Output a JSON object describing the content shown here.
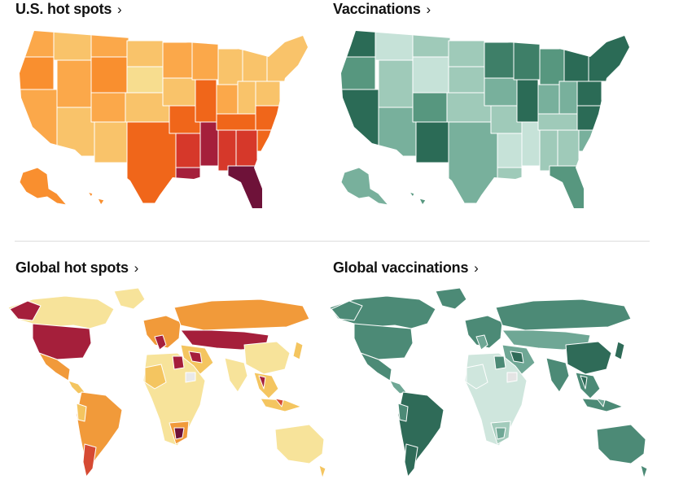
{
  "panels": {
    "us_hot_spots": {
      "title": "U.S. hot spots",
      "chevron": "›",
      "palette": [
        "#f7dd8f",
        "#f9c36a",
        "#fba84a",
        "#f98f2f",
        "#f0661a",
        "#d6382a",
        "#a51f3b",
        "#6e1239"
      ]
    },
    "vaccinations": {
      "title": "Vaccinations",
      "chevron": "›",
      "palette": [
        "#c6e2d8",
        "#9fcab9",
        "#78b09c",
        "#57977f",
        "#3e7f68",
        "#2b6b56"
      ]
    },
    "global_hot_spots": {
      "title": "Global hot spots",
      "chevron": "›",
      "palette": [
        "#f7e39a",
        "#f4c560",
        "#f19a3a",
        "#d64a33",
        "#a51f3b",
        "#e9e9e9"
      ]
    },
    "global_vaccinations": {
      "title": "Global vaccinations",
      "chevron": "›",
      "palette": [
        "#cfe6dd",
        "#a2cbbb",
        "#6fa795",
        "#4c8a76",
        "#2f6b58",
        "#e4e4e4"
      ]
    }
  }
}
